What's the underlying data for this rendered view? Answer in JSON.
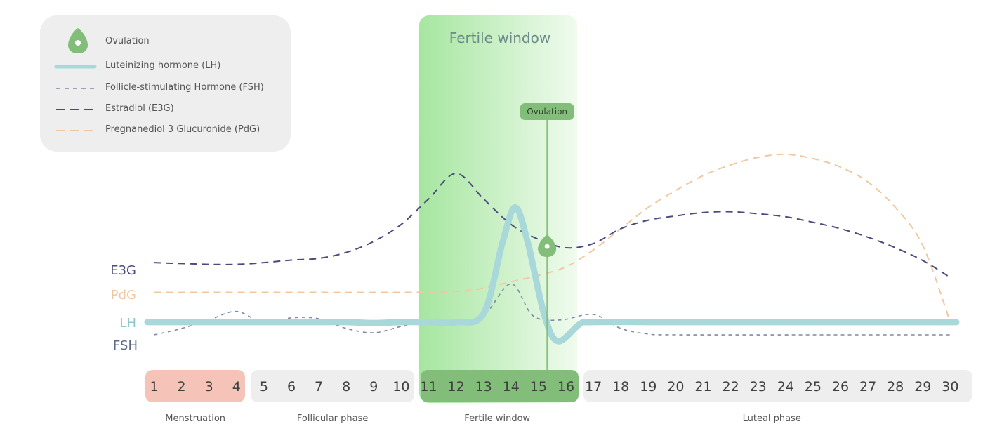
{
  "colors": {
    "lh": "#a8d8da",
    "fsh": "#7d88a8",
    "e3g": "#4a4a7c",
    "pdg": "#f0c8a0",
    "fertile": "#8fd88a",
    "ovulation": "#82bd79",
    "menstruation": "#f6c3b8",
    "phase_gray": "#eeeeee"
  },
  "legend": [
    {
      "key": "ovulation",
      "label": "Ovulation",
      "icon": "egg-icon"
    },
    {
      "key": "lh",
      "label": "Luteinizing hormone (LH)"
    },
    {
      "key": "fsh",
      "label": "Follicle-stimulating Hormone (FSH)"
    },
    {
      "key": "e3g",
      "label": "Estradiol (E3G)"
    },
    {
      "key": "pdg",
      "label": "Pregnanediol 3 Glucuronide (PdG)"
    }
  ],
  "chart_data": {
    "type": "line",
    "title": "",
    "x_label": "",
    "x": [
      1,
      30
    ],
    "fertile_window": {
      "label": "Fertile window",
      "start": 11,
      "end": 16
    },
    "ovulation": {
      "label": "Ovulation",
      "day": 15.3
    },
    "axis_labels": {
      "e3g": "E3G",
      "pdg": "PdG",
      "lh": "LH",
      "fsh": "FSH"
    },
    "series": [
      {
        "name": "Luteinizing hormone (LH)",
        "key": "lh",
        "points": [
          [
            1,
            0.3
          ],
          [
            2,
            0.3
          ],
          [
            3,
            0.3
          ],
          [
            4,
            0.3
          ],
          [
            5,
            0.3
          ],
          [
            6,
            0.3
          ],
          [
            7,
            0.3
          ],
          [
            8,
            0.3
          ],
          [
            9,
            0.28
          ],
          [
            10,
            0.3
          ],
          [
            11,
            0.3
          ],
          [
            12,
            0.3
          ],
          [
            13,
            0.5
          ],
          [
            13.7,
            2.2
          ],
          [
            14.15,
            3.0
          ],
          [
            14.6,
            2.2
          ],
          [
            15.2,
            0.5
          ],
          [
            15.7,
            -0.15
          ],
          [
            16.5,
            0.25
          ],
          [
            17,
            0.3
          ],
          [
            20,
            0.3
          ],
          [
            25,
            0.3
          ],
          [
            30,
            0.3
          ]
        ]
      },
      {
        "name": "Follicle-stimulating Hormone (FSH)",
        "key": "fsh",
        "points": [
          [
            1,
            0.0
          ],
          [
            2,
            0.15
          ],
          [
            3,
            0.35
          ],
          [
            4,
            0.55
          ],
          [
            5,
            0.28
          ],
          [
            6,
            0.4
          ],
          [
            7,
            0.38
          ],
          [
            8,
            0.15
          ],
          [
            9,
            0.05
          ],
          [
            10,
            0.2
          ],
          [
            11,
            0.35
          ],
          [
            12,
            0.3
          ],
          [
            13,
            0.45
          ],
          [
            14,
            1.2
          ],
          [
            14.8,
            0.45
          ],
          [
            15.8,
            0.35
          ],
          [
            17,
            0.48
          ],
          [
            18,
            0.15
          ],
          [
            19,
            0.02
          ],
          [
            20,
            0.0
          ],
          [
            25,
            0.0
          ],
          [
            30,
            0.0
          ]
        ]
      },
      {
        "name": "Estradiol (E3G)",
        "key": "e3g",
        "points": [
          [
            1,
            1.7
          ],
          [
            2,
            1.68
          ],
          [
            3,
            1.66
          ],
          [
            4,
            1.66
          ],
          [
            5,
            1.7
          ],
          [
            6,
            1.76
          ],
          [
            7,
            1.8
          ],
          [
            8,
            1.94
          ],
          [
            9,
            2.2
          ],
          [
            10,
            2.6
          ],
          [
            11,
            3.2
          ],
          [
            12,
            3.8
          ],
          [
            13,
            3.2
          ],
          [
            14,
            2.6
          ],
          [
            15,
            2.25
          ],
          [
            16,
            2.05
          ],
          [
            17,
            2.15
          ],
          [
            18,
            2.5
          ],
          [
            19,
            2.7
          ],
          [
            20,
            2.8
          ],
          [
            21,
            2.88
          ],
          [
            22,
            2.9
          ],
          [
            23,
            2.85
          ],
          [
            24,
            2.78
          ],
          [
            25,
            2.65
          ],
          [
            26,
            2.5
          ],
          [
            27,
            2.3
          ],
          [
            28,
            2.05
          ],
          [
            29,
            1.75
          ],
          [
            30,
            1.35
          ]
        ]
      },
      {
        "name": "Pregnanediol 3 Glucuronide (PdG)",
        "key": "pdg",
        "points": [
          [
            1,
            1.0
          ],
          [
            5,
            1.0
          ],
          [
            10,
            1.0
          ],
          [
            12,
            1.02
          ],
          [
            13,
            1.1
          ],
          [
            14,
            1.25
          ],
          [
            15,
            1.4
          ],
          [
            16,
            1.6
          ],
          [
            17,
            2.0
          ],
          [
            18,
            2.5
          ],
          [
            19,
            3.0
          ],
          [
            20,
            3.4
          ],
          [
            21,
            3.75
          ],
          [
            22,
            4.0
          ],
          [
            23,
            4.18
          ],
          [
            24,
            4.25
          ],
          [
            25,
            4.15
          ],
          [
            26,
            3.95
          ],
          [
            27,
            3.6
          ],
          [
            28,
            3.0
          ],
          [
            29,
            2.1
          ],
          [
            30,
            0.3
          ]
        ]
      }
    ]
  },
  "days": [
    "1",
    "2",
    "3",
    "4",
    "5",
    "6",
    "7",
    "8",
    "9",
    "10",
    "11",
    "12",
    "13",
    "14",
    "15",
    "16",
    "17",
    "18",
    "19",
    "20",
    "21",
    "22",
    "23",
    "24",
    "25",
    "26",
    "27",
    "28",
    "29",
    "30"
  ],
  "phases": [
    {
      "label": "Menstruation",
      "start": 1,
      "end": 4,
      "style": "menstruation"
    },
    {
      "label": "Follicular phase",
      "start": 5,
      "end": 10,
      "style": "gray"
    },
    {
      "label": "Fertile window",
      "start": 11,
      "end": 16,
      "style": "fertile"
    },
    {
      "label": "Luteal phase",
      "start": 17,
      "end": 30,
      "style": "gray"
    }
  ]
}
